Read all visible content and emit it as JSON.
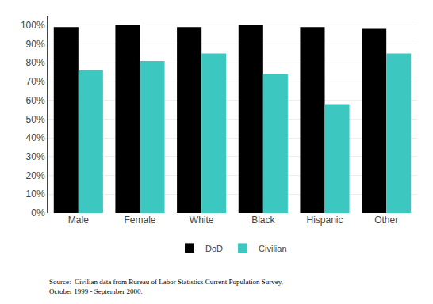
{
  "chart_data": {
    "type": "bar",
    "categories": [
      "Male",
      "Female",
      "White",
      "Black",
      "Hispanic",
      "Other"
    ],
    "series": [
      {
        "name": "DoD",
        "color": "#000000",
        "values": [
          0.99,
          1.0,
          0.99,
          1.0,
          0.99,
          0.98
        ]
      },
      {
        "name": "Civilian",
        "color": "#3CC8C0",
        "values": [
          0.76,
          0.81,
          0.85,
          0.74,
          0.58,
          0.85
        ]
      }
    ],
    "ylim": [
      0,
      1.05
    ],
    "yticks": [
      {
        "value": 0.0,
        "label": "0%"
      },
      {
        "value": 0.1,
        "label": "10%"
      },
      {
        "value": 0.2,
        "label": "20%"
      },
      {
        "value": 0.3,
        "label": "30%"
      },
      {
        "value": 0.4,
        "label": "40%"
      },
      {
        "value": 0.5,
        "label": "50%"
      },
      {
        "value": 0.6,
        "label": "60%"
      },
      {
        "value": 0.7,
        "label": "70%"
      },
      {
        "value": 0.8,
        "label": "80%"
      },
      {
        "value": 0.9,
        "label": "90%"
      },
      {
        "value": 1.0,
        "label": "100%"
      }
    ],
    "grid": true,
    "legend": "bottom",
    "annotations": [
      {
        "text": "Source:  Civilian data from Bureau of Labor Statistics Current Population Survey,\nOctober 1999 - September 2000."
      }
    ]
  }
}
